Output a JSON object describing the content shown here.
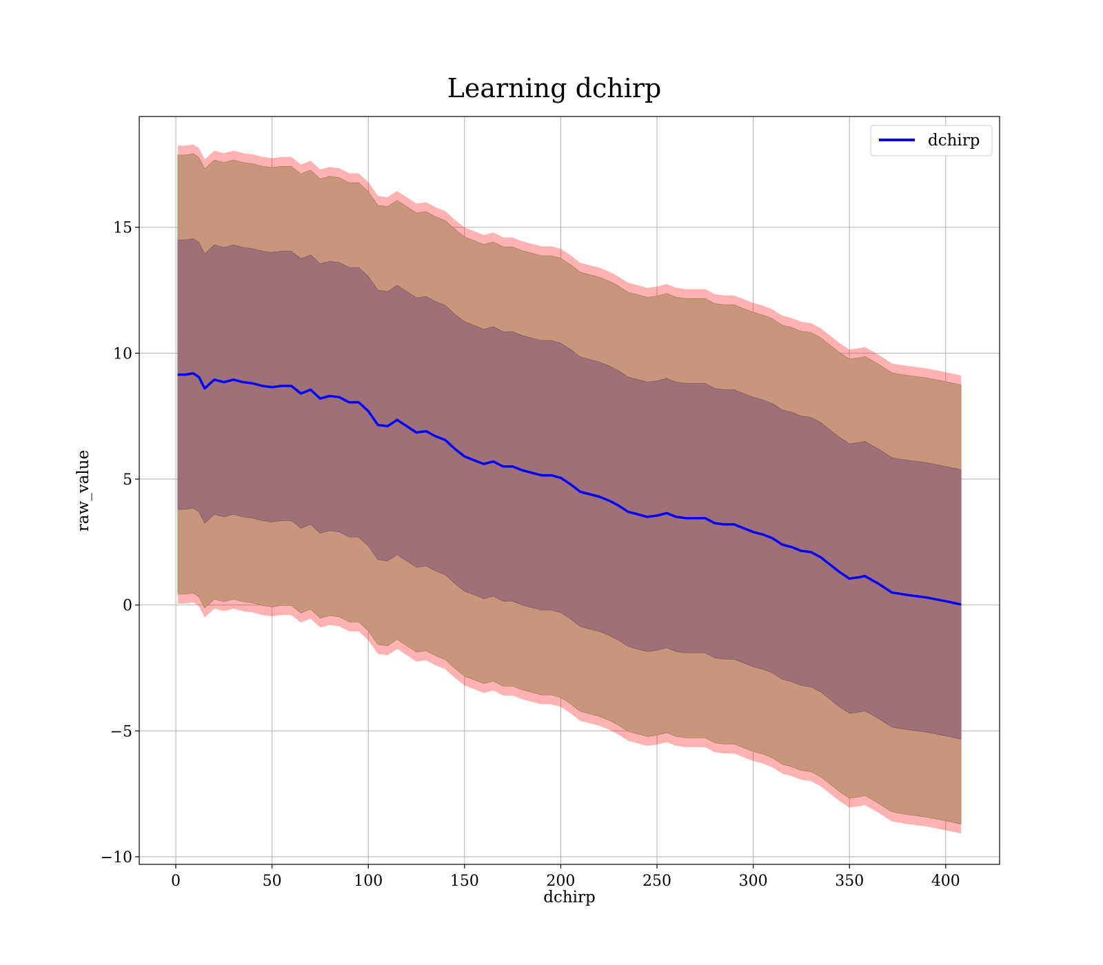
{
  "chart_data": {
    "type": "line",
    "title": "Learning dchirp",
    "xlabel": "dchirp",
    "ylabel": "raw_value",
    "xlim": [
      -19,
      428
    ],
    "ylim": [
      -10.3,
      19.4
    ],
    "xticks": [
      0,
      50,
      100,
      150,
      200,
      250,
      300,
      350,
      400
    ],
    "xtick_labels": [
      "0",
      "50",
      "100",
      "150",
      "200",
      "250",
      "300",
      "350",
      "400"
    ],
    "yticks": [
      -10,
      -5,
      0,
      5,
      10,
      15
    ],
    "ytick_labels": [
      "−10",
      "−5",
      "0",
      "5",
      "10",
      "15"
    ],
    "grid": true,
    "legend": {
      "position": "top-right",
      "entries": [
        "dchirp"
      ]
    },
    "colors": {
      "mean_line": "#0000ff",
      "band_outer": "#ff000055",
      "band_mid": "#8b6a3e",
      "band_inner": "#6e1e50"
    },
    "series": [
      {
        "name": "dchirp",
        "x": [
          1,
          5,
          9,
          12,
          15,
          20,
          25,
          30,
          35,
          40,
          45,
          50,
          55,
          60,
          65,
          70,
          75,
          80,
          85,
          90,
          95,
          100,
          105,
          110,
          115,
          120,
          125,
          130,
          135,
          140,
          145,
          150,
          155,
          160,
          165,
          170,
          175,
          180,
          185,
          190,
          195,
          200,
          205,
          210,
          215,
          220,
          225,
          230,
          235,
          240,
          245,
          250,
          255,
          260,
          265,
          270,
          275,
          280,
          285,
          290,
          295,
          300,
          305,
          310,
          315,
          320,
          325,
          330,
          335,
          340,
          345,
          350,
          355,
          358,
          365,
          372,
          380,
          390,
          400,
          408
        ],
        "mean": [
          9.15,
          9.15,
          9.2,
          9.05,
          8.6,
          8.95,
          8.85,
          8.95,
          8.85,
          8.8,
          8.7,
          8.65,
          8.7,
          8.7,
          8.4,
          8.55,
          8.2,
          8.3,
          8.25,
          8.05,
          8.05,
          7.7,
          7.15,
          7.1,
          7.35,
          7.1,
          6.85,
          6.9,
          6.7,
          6.55,
          6.2,
          5.9,
          5.75,
          5.6,
          5.7,
          5.5,
          5.5,
          5.35,
          5.25,
          5.15,
          5.15,
          5.05,
          4.8,
          4.5,
          4.4,
          4.3,
          4.15,
          3.95,
          3.7,
          3.6,
          3.5,
          3.55,
          3.65,
          3.5,
          3.45,
          3.45,
          3.45,
          3.25,
          3.2,
          3.2,
          3.05,
          2.9,
          2.8,
          2.65,
          2.4,
          2.3,
          2.15,
          2.1,
          1.9,
          1.6,
          1.3,
          1.05,
          1.1,
          1.15,
          0.85,
          0.5,
          0.4,
          0.3,
          0.15,
          0.02
        ],
        "std": [
          5.35,
          5.35,
          5.35,
          5.35,
          5.35,
          5.35,
          5.35,
          5.35,
          5.35,
          5.35,
          5.35,
          5.35,
          5.35,
          5.35,
          5.35,
          5.35,
          5.35,
          5.35,
          5.35,
          5.35,
          5.35,
          5.35,
          5.35,
          5.35,
          5.35,
          5.35,
          5.35,
          5.35,
          5.35,
          5.35,
          5.35,
          5.35,
          5.35,
          5.35,
          5.35,
          5.35,
          5.35,
          5.35,
          5.35,
          5.35,
          5.35,
          5.35,
          5.35,
          5.35,
          5.35,
          5.35,
          5.35,
          5.35,
          5.35,
          5.35,
          5.35,
          5.35,
          5.35,
          5.35,
          5.35,
          5.35,
          5.35,
          5.35,
          5.35,
          5.35,
          5.35,
          5.35,
          5.35,
          5.35,
          5.35,
          5.35,
          5.35,
          5.35,
          5.35,
          5.35,
          5.35,
          5.35,
          5.35,
          5.35,
          5.35,
          5.35,
          5.35,
          5.35,
          5.35,
          5.35
        ]
      }
    ]
  }
}
